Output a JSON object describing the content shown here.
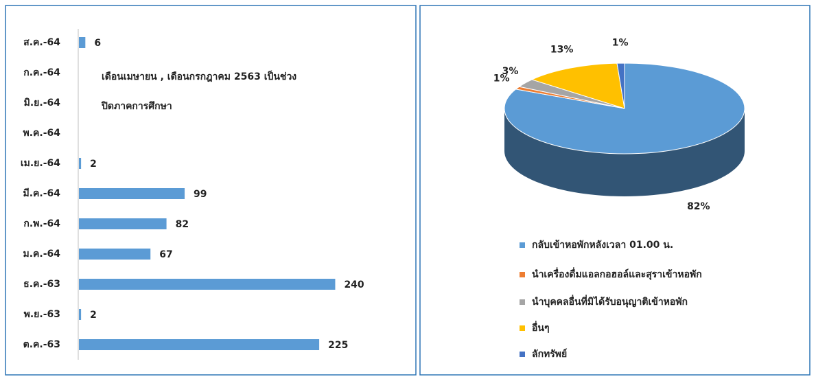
{
  "chart_data": [
    {
      "type": "bar",
      "orientation": "horizontal",
      "categories": [
        "ส.ค.-64",
        "ก.ค.-64",
        "มิ.ย.-64",
        "พ.ค.-64",
        "เม.ย.-64",
        "มี.ค.-64",
        "ก.พ.-64",
        "ม.ค.-64",
        "ธ.ค.-63",
        "พ.ย.-63",
        "ต.ค.-63"
      ],
      "values": [
        6,
        null,
        null,
        null,
        2,
        99,
        82,
        67,
        240,
        2,
        225
      ],
      "color": "#5b9bd5",
      "xlim": [
        0,
        250
      ],
      "annotation": [
        "เดือนเมษายน , เดือนกรกฎาคม 2563 เป็นช่วง",
        "ปิดภาคการศึกษา"
      ]
    },
    {
      "type": "pie",
      "pie3d": true,
      "categories": [
        "กลับเข้าหอพักหลังเวลา 01.00 น.",
        "นำเครื่องดื่มแอลกอฮอล์และสุราเข้าหอพัก",
        "นำบุคคลอื่นที่มิได้รับอนุญาติเข้าหอพัก",
        "อื่นๆ",
        "ลักทรัพย์"
      ],
      "values": [
        82,
        1,
        3,
        13,
        1
      ],
      "value_labels": [
        "82%",
        "1%",
        "3%",
        "13%",
        "1%"
      ],
      "colors": [
        "#5b9bd5",
        "#ed7d31",
        "#a5a5a5",
        "#ffc000",
        "#4472c4"
      ],
      "legend": "bottom-left"
    }
  ]
}
